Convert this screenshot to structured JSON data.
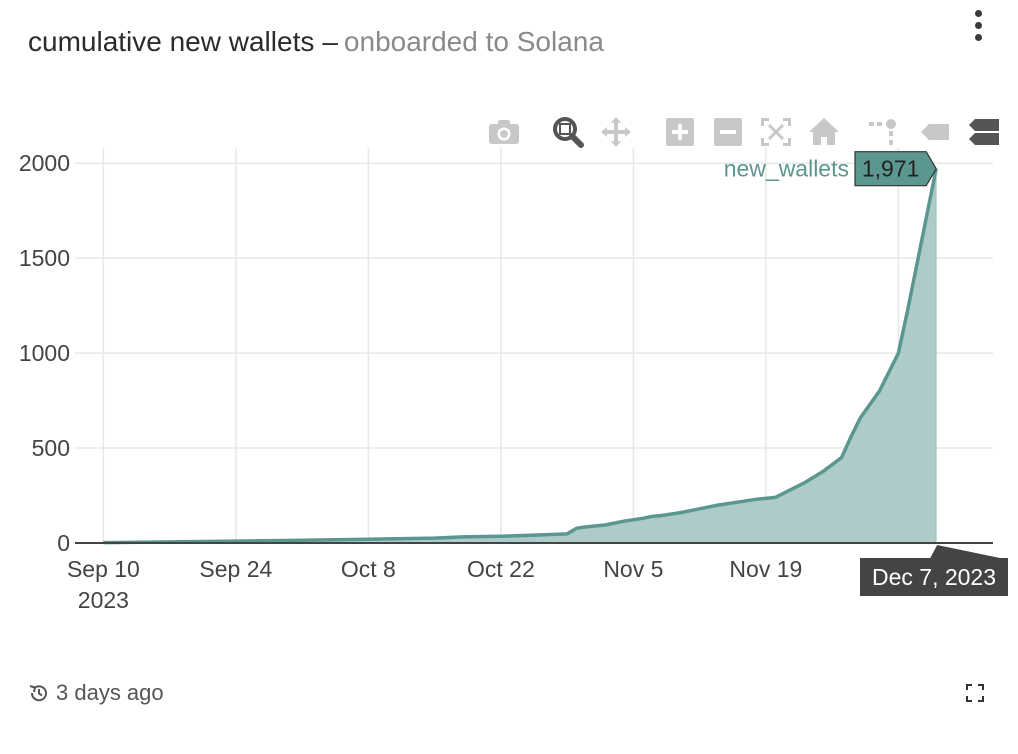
{
  "header": {
    "title": "cumulative new wallets",
    "separator": "–",
    "subtitle": "onboarded to Solana"
  },
  "footer": {
    "updated": "3 days ago"
  },
  "modebar": {
    "icons": [
      "camera-icon",
      "zoom-icon",
      "pan-icon",
      "zoom-in-icon",
      "zoom-out-icon",
      "autoscale-icon",
      "reset-axes-icon",
      "spike-lines-icon",
      "hover-closest-icon",
      "hover-compare-icon"
    ]
  },
  "colors": {
    "line": "#5b9690",
    "fill": "#a9c9c6",
    "tooltip_bg": "#5b9690",
    "axis_tooltip_bg": "#444444",
    "grid": "#e8e8e8"
  },
  "chart_data": {
    "type": "area",
    "title": "cumulative new wallets – onboarded to Solana",
    "xlabel": "",
    "ylabel": "",
    "ylim": [
      0,
      2080
    ],
    "xlim": [
      "2023-09-07",
      "2023-12-13"
    ],
    "grid": true,
    "y_ticks": [
      "0",
      "500",
      "1000",
      "1500",
      "2000"
    ],
    "x_ticks": [
      {
        "date": "2023-09-10",
        "label": "Sep 10",
        "sublabel": "2023"
      },
      {
        "date": "2023-09-24",
        "label": "Sep 24",
        "sublabel": ""
      },
      {
        "date": "2023-10-08",
        "label": "Oct 8",
        "sublabel": ""
      },
      {
        "date": "2023-10-22",
        "label": "Oct 22",
        "sublabel": ""
      },
      {
        "date": "2023-11-05",
        "label": "Nov 5",
        "sublabel": ""
      },
      {
        "date": "2023-11-19",
        "label": "Nov 19",
        "sublabel": ""
      }
    ],
    "series": [
      {
        "name": "new_wallets",
        "x": [
          "2023-09-10",
          "2023-09-17",
          "2023-09-24",
          "2023-10-01",
          "2023-10-08",
          "2023-10-15",
          "2023-10-18",
          "2023-10-22",
          "2023-10-26",
          "2023-10-29",
          "2023-10-30",
          "2023-10-31",
          "2023-11-02",
          "2023-11-04",
          "2023-11-06",
          "2023-11-07",
          "2023-11-08",
          "2023-11-10",
          "2023-11-12",
          "2023-11-14",
          "2023-11-16",
          "2023-11-18",
          "2023-11-20",
          "2023-11-23",
          "2023-11-25",
          "2023-11-27",
          "2023-11-28",
          "2023-11-29",
          "2023-12-01",
          "2023-12-03",
          "2023-12-04",
          "2023-12-07"
        ],
        "y": [
          2,
          6,
          10,
          14,
          20,
          26,
          32,
          36,
          42,
          48,
          78,
          85,
          95,
          115,
          130,
          140,
          145,
          160,
          180,
          200,
          215,
          230,
          240,
          315,
          375,
          450,
          560,
          660,
          800,
          1000,
          1230,
          1971
        ]
      }
    ],
    "hover": {
      "series_name": "new_wallets",
      "value_label": "1,971",
      "x_label": "Dec 7, 2023",
      "x": "2023-12-07",
      "y": 1971
    }
  }
}
